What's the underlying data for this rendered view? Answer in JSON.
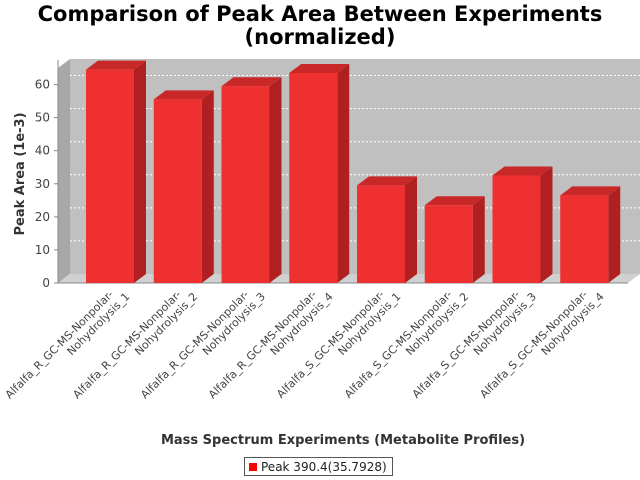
{
  "chart_data": {
    "type": "bar",
    "title_line1": "Comparison of Peak Area Between Experiments",
    "title_line2": "(normalized)",
    "xlabel": "Mass Spectrum Experiments (Metabolite Profiles)",
    "ylabel": "Peak Area (1e-3)",
    "ylim": [
      0,
      65
    ],
    "yticks": [
      0,
      10,
      20,
      30,
      40,
      50,
      60
    ],
    "categories": [
      [
        "Alfalfa_R_GC-MS-Nonpolar-",
        "Nohydrolysis_1"
      ],
      [
        "Alfalfa_R_GC-MS-Nonpolar-",
        "Nohydrolysis_2"
      ],
      [
        "Alfalfa_R_GC-MS-Nonpolar-",
        "Nohydrolysis_3"
      ],
      [
        "Alfalfa_R_GC-MS-Nonpolar-",
        "Nohydrolysis_4"
      ],
      [
        "Alfalfa_S_GC-MS-Nonpolar-",
        "Nohydrolysis_1"
      ],
      [
        "Alfalfa_S_GC-MS-Nonpolar-",
        "Nohydrolysis_2"
      ],
      [
        "Alfalfa_S_GC-MS-Nonpolar-",
        "Nohydrolysis_3"
      ],
      [
        "Alfalfa_S_GC-MS-Nonpolar-",
        "Nohydrolysis_4"
      ]
    ],
    "series": [
      {
        "name": "Peak 390.4(35.7928)",
        "values": [
          64.5,
          55.5,
          59.5,
          63.5,
          29.5,
          23.5,
          32.5,
          26.5
        ]
      }
    ],
    "grid": true,
    "legend_position": "bottom",
    "colors": {
      "bar_front": "#ef3030",
      "bar_side": "#b02020",
      "bar_top": "#c82828",
      "plot_back": "#c0c0c0",
      "plot_floor": "#d0d0d0",
      "plot_wall": "#a8a8a8",
      "grid": "#ffffff"
    }
  }
}
